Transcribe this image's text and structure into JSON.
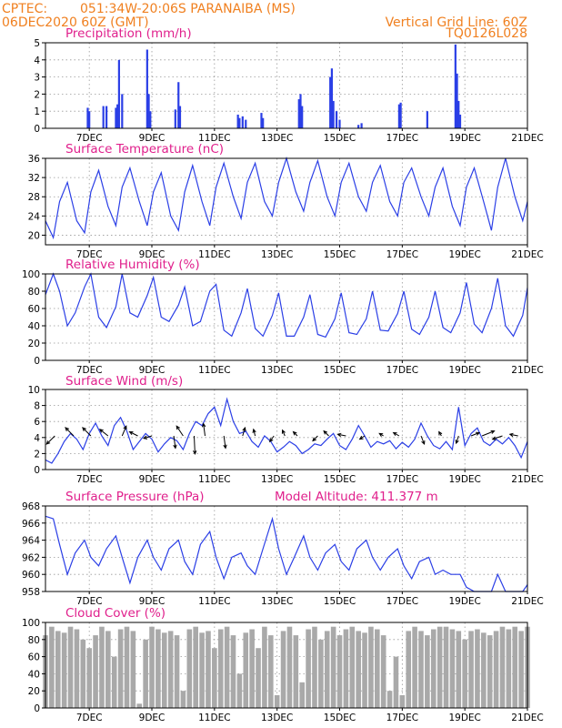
{
  "header": {
    "source": "CPTEC:",
    "location": "051:34W-20:06S  PARANAIBA (MS)",
    "run": "06DEC2020 60Z (GMT)",
    "grid_note": "Vertical Grid Line: 60Z",
    "code": "TQ0126L028"
  },
  "x_ticks": [
    "7DEC",
    "9DEC",
    "11DEC",
    "13DEC",
    "15DEC",
    "17DEC",
    "19DEC",
    "21DEC"
  ],
  "chart_data": [
    {
      "type": "bar",
      "title": "Precipitation (mm/h)",
      "ylim": [
        0,
        5
      ],
      "yticks": [
        "0",
        "1",
        "2",
        "3",
        "4",
        "5"
      ],
      "points": [
        [
          6.95,
          1.2
        ],
        [
          7.0,
          1.0
        ],
        [
          7.45,
          1.3
        ],
        [
          7.55,
          1.3
        ],
        [
          7.85,
          1.2
        ],
        [
          7.9,
          1.4
        ],
        [
          7.95,
          4.0
        ],
        [
          8.05,
          2.0
        ],
        [
          8.85,
          4.6
        ],
        [
          8.9,
          2.0
        ],
        [
          8.95,
          1.0
        ],
        [
          9.75,
          1.1
        ],
        [
          9.85,
          2.7
        ],
        [
          9.9,
          1.3
        ],
        [
          11.75,
          0.8
        ],
        [
          11.8,
          0.6
        ],
        [
          11.9,
          0.7
        ],
        [
          12.0,
          0.5
        ],
        [
          12.5,
          0.9
        ],
        [
          12.55,
          0.6
        ],
        [
          13.7,
          1.7
        ],
        [
          13.75,
          2.0
        ],
        [
          13.8,
          1.3
        ],
        [
          14.7,
          3.0
        ],
        [
          14.75,
          3.5
        ],
        [
          14.8,
          1.6
        ],
        [
          14.9,
          1.0
        ],
        [
          15.0,
          0.5
        ],
        [
          15.6,
          0.2
        ],
        [
          15.7,
          0.3
        ],
        [
          16.9,
          1.4
        ],
        [
          16.95,
          1.5
        ],
        [
          17.8,
          1.0
        ],
        [
          18.7,
          4.9
        ],
        [
          18.75,
          3.2
        ],
        [
          18.8,
          1.6
        ],
        [
          18.85,
          0.8
        ]
      ]
    },
    {
      "type": "line",
      "title": "Surface Temperature (nC)",
      "ylim": [
        18,
        36
      ],
      "yticks": [
        "20",
        "24",
        "28",
        "32",
        "36"
      ],
      "x": [
        5.6,
        5.85,
        6.05,
        6.3,
        6.6,
        6.85,
        7.05,
        7.3,
        7.6,
        7.85,
        8.05,
        8.3,
        8.6,
        8.85,
        9.05,
        9.3,
        9.6,
        9.85,
        10.05,
        10.3,
        10.6,
        10.85,
        11.05,
        11.3,
        11.6,
        11.85,
        12.05,
        12.3,
        12.6,
        12.85,
        13.05,
        13.3,
        13.6,
        13.85,
        14.05,
        14.3,
        14.6,
        14.85,
        15.05,
        15.3,
        15.6,
        15.85,
        16.05,
        16.3,
        16.6,
        16.85,
        17.05,
        17.3,
        17.6,
        17.85,
        18.05,
        18.3,
        18.6,
        18.85,
        19.05,
        19.3,
        19.6,
        19.85,
        20.05,
        20.3,
        20.6,
        20.85,
        21.0
      ],
      "y": [
        23,
        19.5,
        27,
        31,
        23,
        20.5,
        29,
        33.5,
        26,
        22,
        30,
        34,
        27,
        22,
        29,
        33,
        24,
        21,
        29,
        34.5,
        27,
        22,
        30,
        35,
        28,
        23.5,
        31,
        35,
        27,
        24,
        31,
        36,
        29,
        25,
        31,
        35.5,
        28,
        24,
        31,
        35,
        28,
        25,
        31,
        34.5,
        27,
        24,
        31,
        34,
        28,
        24,
        30,
        34,
        26,
        22,
        30,
        34,
        27,
        21,
        30,
        36,
        28,
        23,
        27
      ]
    },
    {
      "type": "line",
      "title": "Relative Humidity (%)",
      "ylim": [
        0,
        100
      ],
      "yticks": [
        "0",
        "20",
        "40",
        "60",
        "80",
        "100"
      ],
      "x": [
        5.6,
        5.85,
        6.05,
        6.3,
        6.55,
        6.85,
        7.05,
        7.3,
        7.55,
        7.85,
        8.05,
        8.3,
        8.55,
        8.85,
        9.05,
        9.3,
        9.55,
        9.85,
        10.05,
        10.3,
        10.55,
        10.85,
        11.05,
        11.3,
        11.55,
        11.85,
        12.05,
        12.3,
        12.55,
        12.85,
        13.05,
        13.3,
        13.55,
        13.85,
        14.05,
        14.3,
        14.55,
        14.85,
        15.05,
        15.3,
        15.55,
        15.85,
        16.05,
        16.3,
        16.55,
        16.85,
        17.05,
        17.3,
        17.55,
        17.85,
        18.05,
        18.3,
        18.55,
        18.85,
        19.05,
        19.3,
        19.55,
        19.85,
        20.05,
        20.3,
        20.55,
        20.85,
        21.0
      ],
      "y": [
        76,
        100,
        80,
        40,
        55,
        85,
        100,
        50,
        38,
        62,
        100,
        55,
        50,
        75,
        96,
        50,
        45,
        64,
        85,
        40,
        45,
        80,
        88,
        35,
        28,
        55,
        83,
        37,
        28,
        52,
        78,
        28,
        28,
        50,
        76,
        30,
        27,
        48,
        78,
        32,
        30,
        48,
        80,
        35,
        34,
        54,
        80,
        36,
        30,
        50,
        80,
        38,
        32,
        55,
        90,
        42,
        32,
        60,
        95,
        40,
        28,
        52,
        84
      ]
    },
    {
      "type": "line",
      "title": "Surface Wind (m/s)",
      "ylim": [
        0,
        10
      ],
      "yticks": [
        "0",
        "2",
        "4",
        "6",
        "8",
        "10"
      ],
      "x": [
        5.6,
        5.8,
        6.0,
        6.2,
        6.4,
        6.6,
        6.8,
        7.0,
        7.2,
        7.4,
        7.6,
        7.8,
        8.0,
        8.2,
        8.4,
        8.6,
        8.8,
        9.0,
        9.2,
        9.4,
        9.6,
        9.8,
        10.0,
        10.2,
        10.4,
        10.6,
        10.8,
        11.0,
        11.2,
        11.4,
        11.6,
        11.8,
        12.0,
        12.2,
        12.4,
        12.6,
        12.8,
        13.0,
        13.2,
        13.4,
        13.6,
        13.8,
        14.0,
        14.2,
        14.4,
        14.6,
        14.8,
        15.0,
        15.2,
        15.4,
        15.6,
        15.8,
        16.0,
        16.2,
        16.4,
        16.6,
        16.8,
        17.0,
        17.2,
        17.4,
        17.6,
        17.8,
        18.0,
        18.2,
        18.4,
        18.6,
        18.8,
        19.0,
        19.2,
        19.4,
        19.6,
        19.8,
        20.0,
        20.2,
        20.4,
        20.6,
        20.8,
        21.0
      ],
      "y": [
        1.2,
        0.8,
        2.0,
        3.5,
        4.5,
        3.8,
        2.5,
        4.5,
        5.8,
        4.2,
        3.0,
        5.5,
        6.5,
        4.8,
        2.5,
        3.5,
        4.5,
        3.8,
        2.2,
        3.2,
        4.0,
        3.6,
        2.5,
        4.5,
        6.0,
        5.5,
        7.0,
        7.8,
        5.5,
        8.8,
        6.0,
        4.5,
        4.8,
        3.5,
        2.8,
        4.2,
        3.5,
        2.2,
        2.8,
        3.5,
        3.0,
        2.0,
        2.5,
        3.2,
        3.0,
        3.8,
        4.5,
        3.0,
        2.5,
        3.8,
        5.5,
        4.2,
        2.8,
        3.5,
        3.2,
        3.6,
        2.6,
        3.4,
        2.8,
        3.8,
        5.8,
        4.2,
        3.0,
        2.6,
        3.5,
        2.5,
        7.8,
        3.0,
        4.5,
        5.2,
        3.5,
        3.0,
        3.8,
        3.2,
        4.0,
        3.0,
        1.5,
        3.5
      ]
    },
    {
      "type": "line",
      "title": "Surface Pressure (hPa)",
      "annotation": "Model Altitude: 411.377  m",
      "ylim": [
        958,
        968
      ],
      "yticks": [
        "958",
        "960",
        "962",
        "964",
        "966",
        "968"
      ],
      "x": [
        5.6,
        5.85,
        6.05,
        6.3,
        6.55,
        6.85,
        7.05,
        7.3,
        7.55,
        7.85,
        8.05,
        8.3,
        8.55,
        8.85,
        9.05,
        9.3,
        9.55,
        9.85,
        10.05,
        10.3,
        10.55,
        10.85,
        11.05,
        11.3,
        11.55,
        11.85,
        12.05,
        12.3,
        12.55,
        12.85,
        13.05,
        13.3,
        13.55,
        13.85,
        14.05,
        14.3,
        14.55,
        14.85,
        15.05,
        15.3,
        15.55,
        15.85,
        16.05,
        16.3,
        16.55,
        16.85,
        17.05,
        17.3,
        17.55,
        17.85,
        18.05,
        18.3,
        18.55,
        18.85,
        19.05,
        19.3,
        19.55,
        19.85,
        20.05,
        20.3,
        20.55,
        20.85,
        21.0
      ],
      "y": [
        966.8,
        966.5,
        963.5,
        960.0,
        962.5,
        964.0,
        962.0,
        961.0,
        963.0,
        964.5,
        962.0,
        959.0,
        962.0,
        964.0,
        962.0,
        960.5,
        963.0,
        964.0,
        961.5,
        960.0,
        963.5,
        965.0,
        962.0,
        959.5,
        962.0,
        962.5,
        961.0,
        960.0,
        963.0,
        966.5,
        963.0,
        960.0,
        962.0,
        964.5,
        962.0,
        960.5,
        962.5,
        963.5,
        961.5,
        960.5,
        963.0,
        964.0,
        962.0,
        960.5,
        962.0,
        963.0,
        961.0,
        959.5,
        961.5,
        962.0,
        960.0,
        960.5,
        960.0,
        960.0,
        958.5,
        957.8,
        957.5,
        957.2,
        960.0,
        957.5,
        957.0,
        956.5,
        958.8
      ]
    },
    {
      "type": "bar",
      "title": "Cloud Cover (%)",
      "ylim": [
        0,
        100
      ],
      "yticks": [
        "0",
        "20",
        "40",
        "60",
        "80",
        "100"
      ],
      "x": [
        5.6,
        5.8,
        6.0,
        6.2,
        6.4,
        6.6,
        6.8,
        7.0,
        7.2,
        7.4,
        7.6,
        7.8,
        8.0,
        8.2,
        8.4,
        8.6,
        8.8,
        9.0,
        9.2,
        9.4,
        9.6,
        9.8,
        10.0,
        10.2,
        10.4,
        10.6,
        10.8,
        11.0,
        11.2,
        11.4,
        11.6,
        11.8,
        12.0,
        12.2,
        12.4,
        12.6,
        12.8,
        13.0,
        13.2,
        13.4,
        13.6,
        13.8,
        14.0,
        14.2,
        14.4,
        14.6,
        14.8,
        15.0,
        15.2,
        15.4,
        15.6,
        15.8,
        16.0,
        16.2,
        16.4,
        16.6,
        16.8,
        17.0,
        17.2,
        17.4,
        17.6,
        17.8,
        18.0,
        18.2,
        18.4,
        18.6,
        18.8,
        19.0,
        19.2,
        19.4,
        19.6,
        19.8,
        20.0,
        20.2,
        20.4,
        20.6,
        20.8,
        21.0
      ],
      "y": [
        85,
        95,
        90,
        88,
        95,
        92,
        80,
        70,
        85,
        95,
        90,
        60,
        92,
        95,
        90,
        5,
        80,
        95,
        92,
        88,
        90,
        85,
        20,
        92,
        95,
        88,
        90,
        70,
        92,
        95,
        85,
        40,
        88,
        92,
        70,
        95,
        85,
        15,
        90,
        95,
        85,
        30,
        92,
        95,
        80,
        90,
        95,
        85,
        92,
        95,
        90,
        88,
        95,
        92,
        85,
        20,
        60,
        15,
        90,
        95,
        90,
        85,
        92,
        95,
        95,
        92,
        90,
        80,
        90,
        92,
        88,
        85,
        90,
        95,
        92,
        95,
        90,
        95
      ]
    }
  ],
  "wind_arrows": [
    {
      "x": 5.9,
      "u": -1,
      "v": -1
    },
    {
      "x": 6.5,
      "u": -1,
      "v": 1
    },
    {
      "x": 7.05,
      "u": -1,
      "v": 1
    },
    {
      "x": 7.6,
      "u": -1,
      "v": 0.8
    },
    {
      "x": 8.05,
      "u": 0.5,
      "v": 1.2
    },
    {
      "x": 8.55,
      "u": -1,
      "v": 0.5
    },
    {
      "x": 9.0,
      "u": -1,
      "v": -0.3
    },
    {
      "x": 9.7,
      "u": 0.2,
      "v": -1.5
    },
    {
      "x": 10.0,
      "u": -0.8,
      "v": 1.2
    },
    {
      "x": 10.35,
      "u": 0.1,
      "v": -2.2
    },
    {
      "x": 10.7,
      "u": -0.2,
      "v": 1.5
    },
    {
      "x": 11.3,
      "u": 0.2,
      "v": -1.5
    },
    {
      "x": 11.9,
      "u": 0.3,
      "v": 1
    },
    {
      "x": 12.3,
      "u": -0.2,
      "v": 0.8
    },
    {
      "x": 12.9,
      "u": -0.5,
      "v": -0.7
    },
    {
      "x": 13.25,
      "u": -0.3,
      "v": 0.7
    },
    {
      "x": 13.65,
      "u": -0.5,
      "v": 0.5
    },
    {
      "x": 14.3,
      "u": -0.6,
      "v": -0.6
    },
    {
      "x": 14.65,
      "u": -0.6,
      "v": 0.6
    },
    {
      "x": 15.2,
      "u": -1,
      "v": 0.2
    },
    {
      "x": 15.8,
      "u": -0.6,
      "v": -0.4
    },
    {
      "x": 16.4,
      "u": -0.5,
      "v": 0.3
    },
    {
      "x": 16.9,
      "u": -0.7,
      "v": 0.4
    },
    {
      "x": 17.6,
      "u": 0.4,
      "v": -1
    },
    {
      "x": 18.25,
      "u": -0.3,
      "v": 0.5
    },
    {
      "x": 18.8,
      "u": -0.3,
      "v": -0.9
    },
    {
      "x": 19.2,
      "u": 1,
      "v": 0.4
    },
    {
      "x": 19.55,
      "u": 1.5,
      "v": 0.6
    },
    {
      "x": 20.2,
      "u": -1.2,
      "v": -0.4
    },
    {
      "x": 20.7,
      "u": -1,
      "v": 0.2
    }
  ]
}
